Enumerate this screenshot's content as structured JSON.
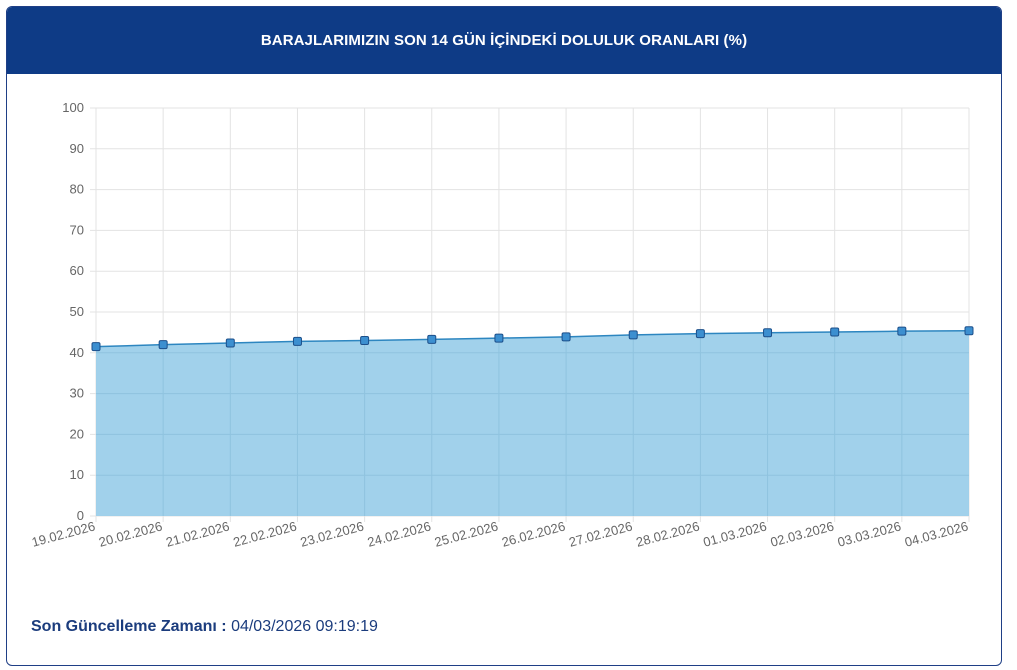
{
  "header": {
    "title": "BARAJLARIMIZIN SON 14 GÜN İÇİNDEKİ DOLULUK ORANLARI (%)"
  },
  "footer": {
    "label": "Son Güncelleme Zamanı :",
    "value": "04/03/2026 09:19:19"
  },
  "colors": {
    "header_bg": "#0e3b86",
    "area_fill": "#9ccfea",
    "line": "#2d86c0",
    "marker_fill": "#3c8fd0",
    "marker_stroke": "#1c4f8a",
    "grid": "#e3e3e3",
    "footer_text": "#1b3c7d"
  },
  "chart_data": {
    "type": "area",
    "title": "BARAJLARIMIZIN SON 14 GÜN İÇİNDEKİ DOLULUK ORANLARI (%)",
    "xlabel": "",
    "ylabel": "",
    "categories": [
      "19.02.2026",
      "20.02.2026",
      "21.02.2026",
      "22.02.2026",
      "23.02.2026",
      "24.02.2026",
      "25.02.2026",
      "26.02.2026",
      "27.02.2026",
      "28.02.2026",
      "01.03.2026",
      "02.03.2026",
      "03.03.2026",
      "04.03.2026"
    ],
    "values": [
      41.5,
      42.0,
      42.4,
      42.8,
      43.0,
      43.3,
      43.6,
      43.9,
      44.4,
      44.7,
      44.9,
      45.1,
      45.3,
      45.4
    ],
    "ylim": [
      0,
      100
    ],
    "yticks": [
      0,
      10,
      20,
      30,
      40,
      50,
      60,
      70,
      80,
      90,
      100
    ],
    "grid": true,
    "legend": "none",
    "marker": "square"
  }
}
